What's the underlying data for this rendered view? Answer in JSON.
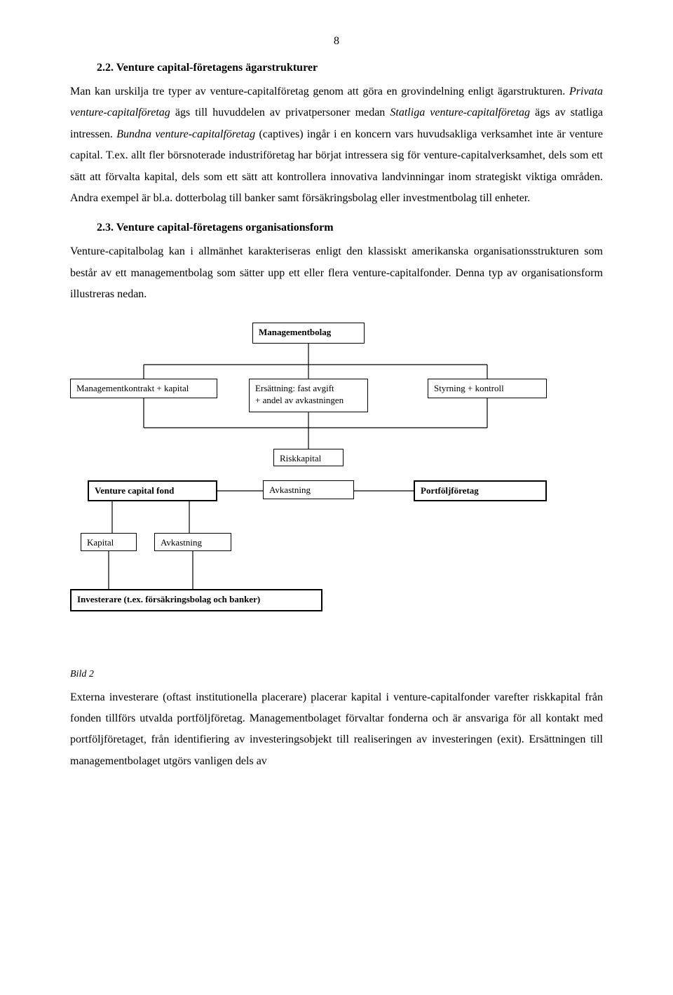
{
  "page_number": "8",
  "section22": {
    "heading": "2.2.    Venture capital-företagens ägarstrukturer",
    "para": "Man kan urskilja tre typer av venture-capitalföretag genom att göra en grovindelning enligt ägarstrukturen. <i>Privata venture-capitalföretag</i> ägs till huvuddelen av privatpersoner medan <i>Statliga venture-capitalföretag</i> ägs av statliga intressen. <i>Bundna venture-capitalföretag</i> (captives) ingår i en koncern vars huvudsakliga verksamhet inte är venture capital. T.ex. allt fler börsnoterade industriföretag har börjat intressera sig för venture-capitalverksamhet, dels som ett sätt att förvalta kapital, dels som ett sätt att kontrollera innovativa landvinningar inom strategiskt viktiga områden. Andra exempel är  bl.a. dotterbolag till banker samt försäkringsbolag eller investmentbolag till enheter."
  },
  "section23": {
    "heading": "2.3.    Venture capital-företagens organisationsform",
    "para": "Venture-capitalbolag kan i allmänhet karakteriseras enligt den klassiskt amerikanska organisationsstrukturen som består av ett managementbolag som sätter upp ett eller flera venture-capitalfonder. Denna typ av organisationsform illustreras nedan."
  },
  "diagram": {
    "n1": "Managementbolag",
    "n2": "Managementkontrakt + kapital",
    "n3a": "Ersättning: fast avgift",
    "n3b": "+ andel av avkastningen",
    "n4": "Styrning + kontroll",
    "n5": "Riskkapital",
    "n6": "Venture capital fond",
    "n7": "Avkastning",
    "n8": "Portföljföretag",
    "n9": "Kapital",
    "n10": "Avkastning",
    "n11": "Investerare (t.ex. försäkringsbolag och banker)"
  },
  "caption": "Bild 2",
  "final_para": "Externa investerare (oftast institutionella placerare) placerar kapital i venture-capitalfonder varefter riskkapital från fonden tillförs utvalda portföljföretag. Managementbolaget förvaltar fonderna och är ansvariga för all kontakt med portföljföretaget, från identifiering av investeringsobjekt till realiseringen av investeringen (exit). Ersättningen till managementbolaget utgörs vanligen dels av"
}
